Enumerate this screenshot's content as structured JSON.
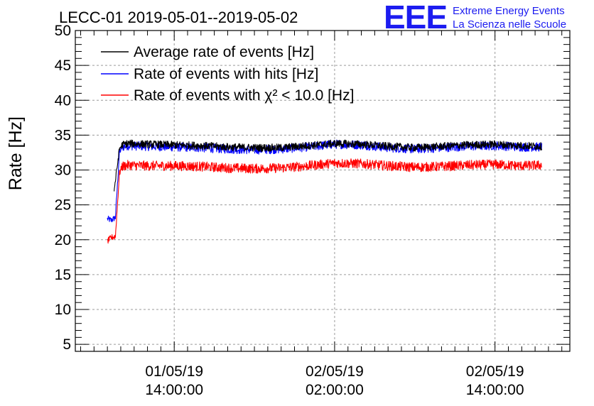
{
  "chart_data": {
    "type": "line",
    "title": "LECC-01 2019-05-01--2019-05-02",
    "xlabel": "",
    "ylabel": "Rate [Hz]",
    "ylim": [
      4,
      50
    ],
    "y_ticks": [
      5,
      10,
      15,
      20,
      25,
      30,
      35,
      40,
      45,
      50
    ],
    "xlim_hours_since_2019-05-01T00:00": [
      6.6,
      43.6
    ],
    "x_ticks": [
      {
        "hours": 14,
        "date": "01/05/19",
        "time": "14:00:00"
      },
      {
        "hours": 26,
        "date": "02/05/19",
        "time": "02:00:00"
      },
      {
        "hours": 38,
        "date": "02/05/19",
        "time": "14:00:00"
      }
    ],
    "grid": true,
    "legend_position": "top-left",
    "series": [
      {
        "name": "Average rate of events [Hz]",
        "color": "#000000",
        "x": [
          9.5,
          9.9,
          10.1,
          10.5,
          12,
          14,
          16,
          18,
          20,
          22,
          24,
          26,
          28,
          30,
          32,
          34,
          36,
          38,
          40,
          41.5
        ],
        "y": [
          27.0,
          33.0,
          33.6,
          33.8,
          33.7,
          33.6,
          33.5,
          33.3,
          33.2,
          33.2,
          33.5,
          33.8,
          33.7,
          33.4,
          33.2,
          33.4,
          33.6,
          33.7,
          33.5,
          33.4
        ]
      },
      {
        "name": "Rate of events with hits [Hz]",
        "color": "#0000ff",
        "x": [
          9.0,
          9.3,
          9.6,
          9.9,
          10.1,
          10.5,
          12,
          14,
          16,
          18,
          20,
          22,
          24,
          26,
          28,
          30,
          32,
          34,
          36,
          38,
          40,
          41.5
        ],
        "y": [
          23.0,
          22.8,
          23.2,
          32.5,
          33.3,
          33.5,
          33.4,
          33.3,
          33.2,
          33.0,
          32.9,
          33.0,
          33.3,
          33.7,
          33.6,
          33.2,
          33.0,
          33.2,
          33.4,
          33.5,
          33.3,
          33.3
        ]
      },
      {
        "name": "Rate of events with χ² < 10.0 [Hz]",
        "color": "#ff0000",
        "x": [
          9.0,
          9.3,
          9.6,
          9.9,
          10.1,
          10.5,
          12,
          14,
          16,
          18,
          20,
          22,
          24,
          26,
          28,
          30,
          32,
          34,
          36,
          38,
          40,
          41.5
        ],
        "y": [
          19.8,
          20.3,
          20.5,
          29.5,
          30.5,
          30.7,
          30.6,
          30.6,
          30.5,
          30.3,
          30.2,
          30.3,
          30.6,
          31.0,
          30.9,
          30.6,
          30.4,
          30.5,
          30.7,
          30.8,
          30.6,
          30.7
        ]
      }
    ]
  },
  "logo": {
    "mark": "EEE",
    "line1": "Extreme Energy Events",
    "line2": "La Scienza nelle Scuole"
  }
}
